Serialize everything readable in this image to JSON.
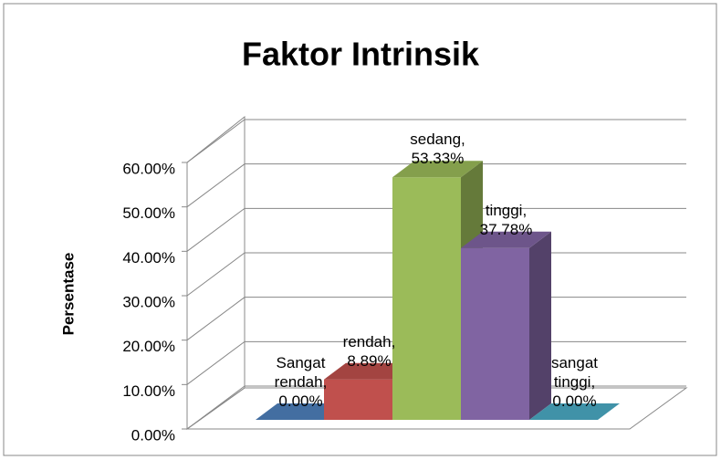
{
  "chart_data": {
    "type": "bar3d",
    "title": "Faktor Intrinsik",
    "y_label": "Persentase",
    "values": [
      0,
      8.89,
      53.33,
      37.78,
      0
    ],
    "value_labels": [
      "Sangat rendah, 0.00%",
      "rendah, 8.89%",
      "sedang, 53.33%",
      "tinggi, 37.78%",
      "sangat tinggi, 0.00%"
    ],
    "colors": [
      "#4f81bd",
      "#c0504d",
      "#9bbb59",
      "#8064a2",
      "#4bacc6"
    ],
    "ylim": [
      0,
      60
    ],
    "yticks": [
      {
        "value": 0,
        "label": "0.00%"
      },
      {
        "value": 10,
        "label": "10.00%"
      },
      {
        "value": 20,
        "label": "20.00%"
      },
      {
        "value": 30,
        "label": "30.00%"
      },
      {
        "value": 40,
        "label": "40.00%"
      },
      {
        "value": 50,
        "label": "50.00%"
      },
      {
        "value": 60,
        "label": "60.00%"
      }
    ],
    "grid": true
  }
}
